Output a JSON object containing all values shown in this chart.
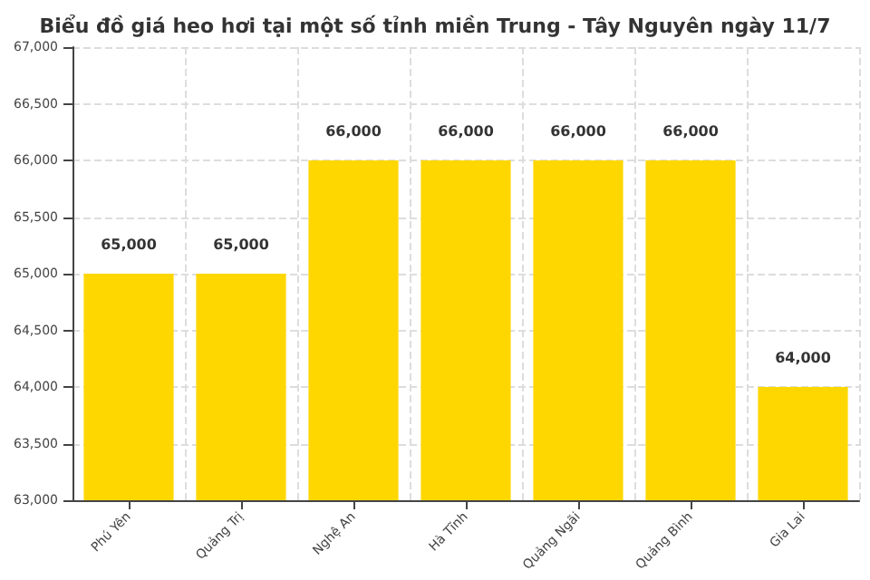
{
  "chart_data": {
    "type": "bar",
    "title": "Biểu đồ giá heo hơi tại một số tỉnh miền Trung - Tây Nguyên ngày 11/7",
    "categories": [
      "Phú Yên",
      "Quảng Trị",
      "Nghệ An",
      "Hà Tĩnh",
      "Quảng Ngãi",
      "Quảng Bình",
      "Gia Lai"
    ],
    "values": [
      65000,
      65000,
      66000,
      66000,
      66000,
      66000,
      64000
    ],
    "value_labels": [
      "65,000",
      "65,000",
      "66,000",
      "66,000",
      "66,000",
      "66,000",
      "64,000"
    ],
    "color": "#ffd700",
    "ylim": [
      63000,
      67000
    ],
    "yticks": [
      {
        "value": 63000,
        "label": "63,000"
      },
      {
        "value": 63500,
        "label": "63,500"
      },
      {
        "value": 64000,
        "label": "64,000"
      },
      {
        "value": 64500,
        "label": "64,500"
      },
      {
        "value": 65000,
        "label": "65,000"
      },
      {
        "value": 65500,
        "label": "65,500"
      },
      {
        "value": 66000,
        "label": "66,000"
      },
      {
        "value": 66500,
        "label": "66,500"
      },
      {
        "value": 67000,
        "label": "67,000"
      }
    ],
    "grid": true
  }
}
